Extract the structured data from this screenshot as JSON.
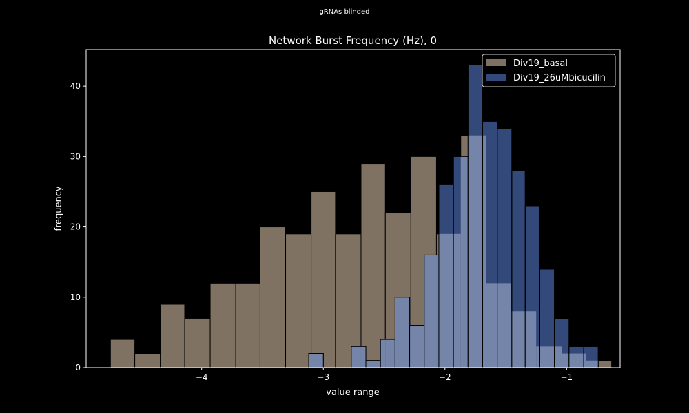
{
  "suptitle": "gRNAs blinded",
  "chart_data": {
    "type": "bar",
    "title": "Network Burst Frequency (Hz), 0",
    "xlabel": "value range",
    "ylabel": "frequency",
    "xlim": [
      -4.95,
      -0.56
    ],
    "ylim": [
      0,
      45.2
    ],
    "xticks": [
      {
        "value": -4,
        "label": "−4"
      },
      {
        "value": -3,
        "label": "−3"
      },
      {
        "value": -2,
        "label": "−2"
      },
      {
        "value": -1,
        "label": "−1"
      }
    ],
    "yticks": [
      {
        "value": 0,
        "label": "0"
      },
      {
        "value": 10,
        "label": "10"
      },
      {
        "value": 20,
        "label": "20"
      },
      {
        "value": 30,
        "label": "30"
      },
      {
        "value": 40,
        "label": "40"
      }
    ],
    "legend": {
      "position": "top-right"
    },
    "series": [
      {
        "name": "Div19_basal",
        "color": "#7f7263",
        "bins": [
          {
            "x0": -4.75,
            "x1": -4.55,
            "count": 4
          },
          {
            "x0": -4.55,
            "x1": -4.34,
            "count": 2
          },
          {
            "x0": -4.34,
            "x1": -4.14,
            "count": 9
          },
          {
            "x0": -4.14,
            "x1": -3.93,
            "count": 7
          },
          {
            "x0": -3.93,
            "x1": -3.72,
            "count": 12
          },
          {
            "x0": -3.72,
            "x1": -3.52,
            "count": 12
          },
          {
            "x0": -3.52,
            "x1": -3.31,
            "count": 20
          },
          {
            "x0": -3.31,
            "x1": -3.1,
            "count": 19
          },
          {
            "x0": -3.1,
            "x1": -2.9,
            "count": 25
          },
          {
            "x0": -2.9,
            "x1": -2.69,
            "count": 19
          },
          {
            "x0": -2.69,
            "x1": -2.49,
            "count": 29
          },
          {
            "x0": -2.49,
            "x1": -2.28,
            "count": 22
          },
          {
            "x0": -2.28,
            "x1": -2.07,
            "count": 30
          },
          {
            "x0": -2.07,
            "x1": -1.87,
            "count": 19
          },
          {
            "x0": -1.87,
            "x1": -1.66,
            "count": 33
          },
          {
            "x0": -1.66,
            "x1": -1.46,
            "count": 12
          },
          {
            "x0": -1.46,
            "x1": -1.25,
            "count": 8
          },
          {
            "x0": -1.25,
            "x1": -1.04,
            "count": 3
          },
          {
            "x0": -1.04,
            "x1": -0.84,
            "count": 2
          },
          {
            "x0": -0.84,
            "x1": -0.63,
            "count": 1
          }
        ]
      },
      {
        "name": "Div19_26uMbicucilin",
        "color": "#33497a",
        "overlap_color": "#7584a9",
        "bins": [
          {
            "x0": -3.12,
            "x1": -3.0,
            "count": 2
          },
          {
            "x0": -3.0,
            "x1": -2.88,
            "count": 0
          },
          {
            "x0": -2.88,
            "x1": -2.77,
            "count": 0
          },
          {
            "x0": -2.77,
            "x1": -2.65,
            "count": 3
          },
          {
            "x0": -2.65,
            "x1": -2.53,
            "count": 1
          },
          {
            "x0": -2.53,
            "x1": -2.41,
            "count": 4
          },
          {
            "x0": -2.41,
            "x1": -2.29,
            "count": 10
          },
          {
            "x0": -2.29,
            "x1": -2.17,
            "count": 6
          },
          {
            "x0": -2.17,
            "x1": -2.05,
            "count": 16
          },
          {
            "x0": -2.05,
            "x1": -1.93,
            "count": 26
          },
          {
            "x0": -1.93,
            "x1": -1.81,
            "count": 30
          },
          {
            "x0": -1.81,
            "x1": -1.69,
            "count": 43
          },
          {
            "x0": -1.69,
            "x1": -1.57,
            "count": 35
          },
          {
            "x0": -1.57,
            "x1": -1.45,
            "count": 34
          },
          {
            "x0": -1.45,
            "x1": -1.34,
            "count": 28
          },
          {
            "x0": -1.34,
            "x1": -1.22,
            "count": 23
          },
          {
            "x0": -1.22,
            "x1": -1.1,
            "count": 14
          },
          {
            "x0": -1.1,
            "x1": -0.98,
            "count": 7
          },
          {
            "x0": -0.98,
            "x1": -0.86,
            "count": 3
          },
          {
            "x0": -0.86,
            "x1": -0.74,
            "count": 3
          }
        ]
      }
    ]
  }
}
